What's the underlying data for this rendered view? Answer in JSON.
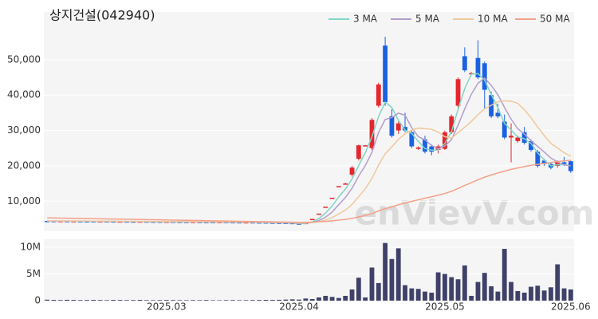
{
  "chart_data": [
    {
      "type": "candlestick",
      "title": "상지건설(042940)",
      "watermark": "enVievV.com",
      "up_color": "#e5262d",
      "down_color": "#1b62e2",
      "open": [
        4410,
        4400,
        4380,
        4390,
        4350,
        4360,
        4340,
        4330,
        4300,
        4320,
        4290,
        4270,
        4280,
        4250,
        4240,
        4260,
        4230,
        4220,
        4200,
        4210,
        4180,
        4170,
        4150,
        4160,
        4130,
        4120,
        4100,
        4110,
        4080,
        4060,
        4040,
        4050,
        4010,
        3990,
        3950,
        3920,
        3880,
        3840,
        3700,
        3560,
        5000,
        6500,
        8450,
        10980,
        14270,
        14900,
        17500,
        22000,
        25800,
        25000,
        37000,
        54000,
        34000,
        30000,
        31000,
        29500,
        24800,
        27500,
        25500,
        24500,
        24800,
        29500,
        37000,
        51000,
        46200,
        50500,
        49000,
        40000,
        35000,
        32500,
        28000,
        27000,
        29500,
        27000,
        24000,
        21500,
        20500,
        20000,
        21000,
        21300
      ],
      "high": [
        4450,
        4440,
        4430,
        4430,
        4400,
        4400,
        4380,
        4370,
        4360,
        4360,
        4330,
        4320,
        4320,
        4290,
        4300,
        4300,
        4270,
        4260,
        4250,
        4250,
        4220,
        4210,
        4200,
        4200,
        4170,
        4160,
        4150,
        4150,
        4120,
        4100,
        4090,
        4090,
        4050,
        4030,
        3990,
        3960,
        3920,
        3880,
        3760,
        3900,
        5000,
        6500,
        8450,
        10980,
        14270,
        15200,
        20000,
        26000,
        25900,
        33500,
        43500,
        56500,
        36000,
        32500,
        35000,
        30000,
        25500,
        28500,
        26000,
        26000,
        30000,
        34500,
        45000,
        53500,
        46500,
        55500,
        49500,
        41000,
        37500,
        34500,
        32000,
        28500,
        31000,
        27500,
        24500,
        22000,
        21000,
        21500,
        22500,
        21500
      ],
      "low": [
        4360,
        4340,
        4340,
        4310,
        4310,
        4300,
        4290,
        4260,
        4260,
        4250,
        4230,
        4230,
        4210,
        4200,
        4200,
        4190,
        4180,
        4160,
        4160,
        4140,
        4130,
        4110,
        4110,
        4090,
        4080,
        4060,
        4060,
        4040,
        4020,
        4000,
        4000,
        3970,
        3950,
        3910,
        3880,
        3840,
        3800,
        3660,
        3520,
        3500,
        5000,
        6500,
        8450,
        10980,
        14270,
        14800,
        17000,
        21500,
        25700,
        24500,
        36500,
        37000,
        28000,
        29000,
        29500,
        25000,
        24500,
        23500,
        23000,
        23500,
        24500,
        29000,
        36500,
        46500,
        46000,
        44500,
        36000,
        33500,
        33500,
        27500,
        21000,
        26500,
        26000,
        24000,
        19500,
        20000,
        19000,
        19500,
        20000,
        18000
      ],
      "close": [
        4400,
        4380,
        4390,
        4350,
        4360,
        4340,
        4330,
        4300,
        4320,
        4290,
        4270,
        4280,
        4250,
        4240,
        4260,
        4230,
        4220,
        4200,
        4210,
        4180,
        4170,
        4150,
        4160,
        4130,
        4120,
        4100,
        4110,
        4080,
        4060,
        4040,
        4050,
        4010,
        3990,
        3950,
        3920,
        3880,
        3840,
        3700,
        3560,
        3850,
        5000,
        6500,
        8450,
        10980,
        14270,
        15000,
        19500,
        25800,
        25800,
        33000,
        43000,
        38000,
        28500,
        32000,
        30000,
        25500,
        25200,
        24000,
        24000,
        25500,
        29500,
        34000,
        44500,
        47000,
        46200,
        45000,
        41500,
        34000,
        34000,
        28000,
        28500,
        28000,
        26500,
        24500,
        20000,
        20500,
        19500,
        21000,
        20500,
        18500
      ],
      "series": [
        {
          "name": "3 MA",
          "color": "#7fd6c6",
          "values": [
            4410,
            4400,
            4380,
            4390,
            4350,
            4360,
            4340,
            4330,
            4300,
            4320,
            4290,
            4270,
            4280,
            4250,
            4240,
            4260,
            4230,
            4220,
            4200,
            4210,
            4180,
            4170,
            4150,
            4160,
            4130,
            4120,
            4100,
            4110,
            4080,
            4060,
            4040,
            4050,
            4010,
            3990,
            3950,
            3917,
            3880,
            3807,
            3700,
            3703,
            4137,
            5117,
            6650,
            8643,
            11233,
            13417,
            16257,
            20100,
            23700,
            28200,
            33933,
            38000,
            36500,
            32833,
            30167,
            29167,
            26900,
            24900,
            24400,
            24500,
            26333,
            29667,
            36000,
            41833,
            45900,
            46067,
            44233,
            40167,
            36500,
            32000,
            30167,
            28167,
            27667,
            26333,
            23667,
            21667,
            20000,
            20333,
            20333,
            20000
          ]
        },
        {
          "name": "5 MA",
          "color": "#b39dcb",
          "values": [
            4420,
            4410,
            4400,
            4380,
            4390,
            4350,
            4360,
            4340,
            4330,
            4300,
            4320,
            4290,
            4270,
            4280,
            4250,
            4240,
            4260,
            4230,
            4220,
            4200,
            4210,
            4180,
            4170,
            4150,
            4160,
            4130,
            4120,
            4100,
            4110,
            4080,
            4060,
            4048,
            4030,
            4008,
            3984,
            3950,
            3916,
            3858,
            3780,
            3766,
            3990,
            4522,
            5472,
            6956,
            9040,
            11040,
            13640,
            17110,
            20074,
            23820,
            29420,
            33120,
            33660,
            34900,
            34300,
            30800,
            28240,
            27340,
            25740,
            24840,
            25640,
            27400,
            31500,
            36100,
            40240,
            43340,
            44840,
            42740,
            40140,
            36500,
            33200,
            30500,
            29000,
            27100,
            25500,
            23900,
            22200,
            21100,
            20300,
            20000
          ]
        },
        {
          "name": "10 MA",
          "color": "#f0c89b",
          "values": [
            4450,
            4440,
            4430,
            4420,
            4410,
            4400,
            4390,
            4380,
            4370,
            4350,
            4340,
            4330,
            4310,
            4300,
            4290,
            4280,
            4270,
            4260,
            4250,
            4240,
            4230,
            4220,
            4210,
            4200,
            4190,
            4180,
            4160,
            4150,
            4140,
            4130,
            4110,
            4100,
            4080,
            4060,
            4040,
            4010,
            3982,
            3944,
            3894,
            3875,
            3970,
            4219,
            4665,
            5368,
            6403,
            7515,
            9081,
            11291,
            13515,
            16430,
            20230,
            23380,
            25385,
            27487,
            29060,
            30110,
            30680,
            30500,
            30320,
            29570,
            28220,
            27820,
            29420,
            30920,
            32540,
            34490,
            36120,
            37120,
            38120,
            38370,
            38270,
            37670,
            35870,
            33620,
            31000,
            28550,
            26350,
            25050,
            23700,
            22750
          ]
        },
        {
          "name": "50 MA",
          "color": "#f4a08a",
          "values": [
            5300,
            5270,
            5230,
            5200,
            5170,
            5130,
            5100,
            5070,
            5030,
            5000,
            4970,
            4930,
            4900,
            4870,
            4830,
            4800,
            4770,
            4730,
            4700,
            4670,
            4630,
            4600,
            4570,
            4530,
            4500,
            4470,
            4430,
            4400,
            4370,
            4330,
            4300,
            4270,
            4230,
            4200,
            4170,
            4130,
            4100,
            4070,
            4040,
            4050,
            4100,
            4200,
            4300,
            4450,
            4650,
            4850,
            5150,
            5550,
            5950,
            6500,
            7250,
            7900,
            8400,
            9000,
            9500,
            9950,
            10400,
            10850,
            11250,
            11700,
            12200,
            12800,
            13600,
            14450,
            15250,
            16050,
            16800,
            17400,
            18000,
            18500,
            19000,
            19400,
            19800,
            20150,
            20400,
            20700,
            20950,
            21200,
            21400,
            21600
          ]
        }
      ],
      "ylim": [
        1500,
        63500
      ],
      "yticks": [
        {
          "value": 10000,
          "label": "10,000"
        },
        {
          "value": 20000,
          "label": "20,000"
        },
        {
          "value": 30000,
          "label": "30,000"
        },
        {
          "value": 40000,
          "label": "40,000"
        },
        {
          "value": 50000,
          "label": "50,000"
        }
      ],
      "grid": true
    },
    {
      "type": "bar",
      "color": "#3f4169",
      "categories": [
        null,
        null,
        null,
        null,
        null,
        null,
        null,
        null,
        null,
        null,
        null,
        null,
        null,
        null,
        null,
        null,
        null,
        null,
        "2025.03",
        null,
        null,
        null,
        null,
        null,
        null,
        null,
        null,
        null,
        null,
        null,
        null,
        null,
        null,
        null,
        null,
        null,
        null,
        null,
        "2025.04",
        null,
        null,
        null,
        null,
        null,
        null,
        null,
        null,
        null,
        null,
        null,
        null,
        null,
        null,
        null,
        null,
        null,
        null,
        null,
        null,
        null,
        "2025.05",
        null,
        null,
        null,
        null,
        null,
        null,
        null,
        null,
        null,
        null,
        null,
        null,
        null,
        null,
        null,
        null,
        null,
        null,
        "2025.06"
      ],
      "values": [
        180000,
        150000,
        120000,
        160000,
        140000,
        110000,
        130000,
        150000,
        120000,
        100000,
        140000,
        130000,
        110000,
        120000,
        150000,
        100000,
        90000,
        110000,
        130000,
        120000,
        100000,
        90000,
        110000,
        100000,
        120000,
        90000,
        80000,
        100000,
        110000,
        90000,
        100000,
        120000,
        130000,
        150000,
        140000,
        160000,
        200000,
        250000,
        200000,
        400000,
        300000,
        600000,
        900000,
        700000,
        500000,
        900000,
        2100000,
        4300000,
        600000,
        6200000,
        3300000,
        10800000,
        7800000,
        9800000,
        2900000,
        2300000,
        2200000,
        1700000,
        1500000,
        5300000,
        5000000,
        4400000,
        4000000,
        6600000,
        900000,
        3500000,
        5200000,
        2700000,
        1700000,
        9700000,
        3500000,
        1800000,
        1500000,
        2600000,
        2800000,
        1900000,
        2500000,
        6800000,
        2300000,
        2100000
      ],
      "ylim": [
        0,
        11500000
      ],
      "yticks": [
        0,
        {
          "value": 5000000,
          "label": "5M"
        },
        {
          "value": 10000000,
          "label": "10M"
        }
      ],
      "grid": true
    }
  ]
}
